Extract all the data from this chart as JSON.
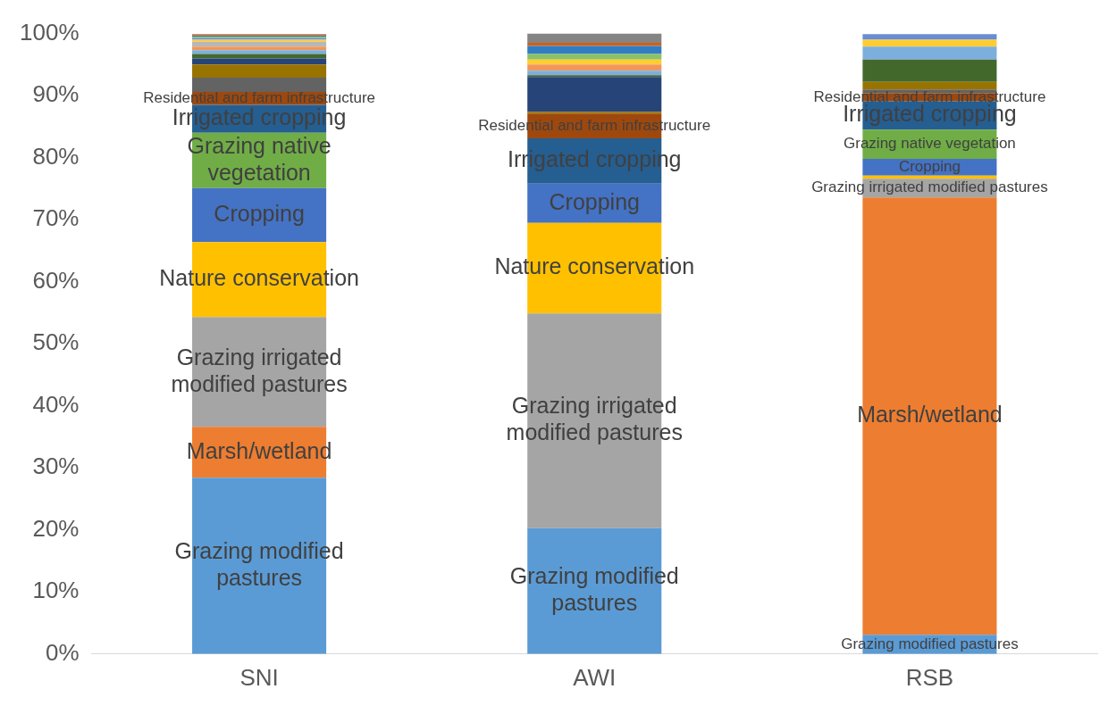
{
  "chart_data": {
    "type": "bar",
    "stacked": true,
    "categories": [
      "SNI",
      "AWI",
      "RSB"
    ],
    "ylim": [
      0,
      100
    ],
    "yticks": [
      {
        "value": 0,
        "label": "0%"
      },
      {
        "value": 10,
        "label": "10%"
      },
      {
        "value": 20,
        "label": "20%"
      },
      {
        "value": 30,
        "label": "30%"
      },
      {
        "value": 40,
        "label": "40%"
      },
      {
        "value": 50,
        "label": "50%"
      },
      {
        "value": 60,
        "label": "60%"
      },
      {
        "value": 70,
        "label": "70%"
      },
      {
        "value": 80,
        "label": "80%"
      },
      {
        "value": 90,
        "label": "90%"
      },
      {
        "value": 100,
        "label": "100%"
      }
    ],
    "grid": false,
    "legend": false,
    "series": [
      {
        "color": "#5b9bd5",
        "values": [
          28.4,
          20.3,
          3.1
        ],
        "value_labels": [
          "Grazing modified pastures",
          "Grazing modified pastures",
          "Grazing modified pastures"
        ]
      },
      {
        "color": "#ed7d31",
        "values": [
          8.2,
          0,
          70.5
        ],
        "value_labels": [
          "Marsh/wetland",
          null,
          "Marsh/wetland"
        ]
      },
      {
        "color": "#a5a5a5",
        "values": [
          17.7,
          34.6,
          3.0
        ],
        "value_labels": [
          "Grazing irrigated modified pastures",
          "Grazing irrigated modified pastures",
          "Grazing irrigated modified pastures"
        ]
      },
      {
        "color": "#ffc000",
        "values": [
          12.1,
          14.6,
          0.5
        ],
        "value_labels": [
          "Nature conservation",
          "Nature conservation",
          null
        ]
      },
      {
        "color": "#4472c4",
        "values": [
          8.7,
          6.3,
          2.7
        ],
        "value_labels": [
          "Cropping",
          "Cropping",
          "Cropping"
        ]
      },
      {
        "color": "#70ad47",
        "values": [
          8.9,
          0,
          4.7
        ],
        "value_labels": [
          "Grazing native vegetation",
          null,
          "Grazing native vegetation"
        ]
      },
      {
        "color": "#255e91",
        "values": [
          4.5,
          7.3,
          4.6
        ],
        "value_labels": [
          "Irrigated cropping",
          "Irrigated cropping",
          "Irrigated cropping"
        ]
      },
      {
        "color": "#9e480e",
        "values": [
          2.1,
          4.0,
          1.3
        ],
        "value_labels": [
          "Residential and farm infrastructure",
          "Residential and farm infrastructure",
          "Residential and farm infrastructure"
        ]
      },
      {
        "color": "#636363",
        "values": [
          2.3,
          0,
          0.6
        ]
      },
      {
        "color": "#997300",
        "values": [
          2.1,
          0.3,
          1.2
        ]
      },
      {
        "color": "#264478",
        "values": [
          1.0,
          5.6,
          0
        ]
      },
      {
        "color": "#43682b",
        "values": [
          0.7,
          0.3,
          3.6
        ]
      },
      {
        "color": "#7cafdd",
        "values": [
          0.6,
          0.7,
          2.1
        ]
      },
      {
        "color": "#f1975a",
        "values": [
          0.6,
          1.0,
          0
        ]
      },
      {
        "color": "#b7b7b7",
        "values": [
          0.8,
          0,
          0
        ]
      },
      {
        "color": "#ffcd33",
        "values": [
          0.3,
          0.8,
          1.1
        ]
      },
      {
        "color": "#698ed0",
        "values": [
          0.3,
          0,
          0.9
        ]
      },
      {
        "color": "#8cc168",
        "values": [
          0.2,
          0.9,
          null
        ]
      },
      {
        "color": "#327dc2",
        "values": [
          0.2,
          1.3,
          0
        ]
      },
      {
        "color": "#d26012",
        "values": [
          0.2,
          0.5,
          0
        ]
      },
      {
        "color": "#848484",
        "values": [
          null,
          1.5,
          0
        ]
      }
    ]
  }
}
